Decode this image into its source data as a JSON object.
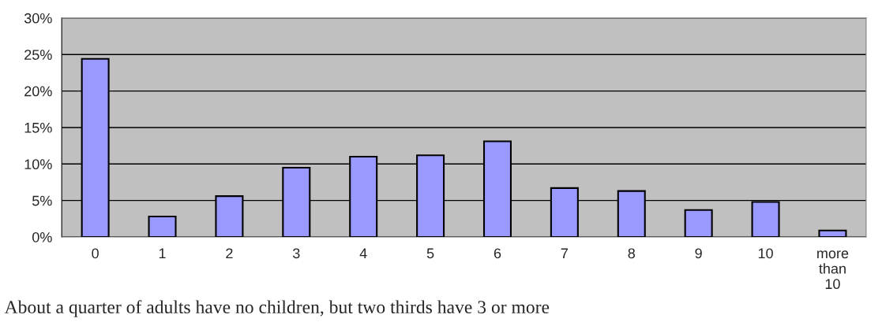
{
  "chart_data": {
    "type": "bar",
    "categories": [
      "0",
      "1",
      "2",
      "3",
      "4",
      "5",
      "6",
      "7",
      "8",
      "9",
      "10",
      "more than 10"
    ],
    "values": [
      24.4,
      2.8,
      5.6,
      9.5,
      11.0,
      11.2,
      13.1,
      6.7,
      6.3,
      3.7,
      4.8,
      0.9
    ],
    "color": "#9999ff",
    "ylim": [
      0,
      30
    ],
    "yticks": [
      {
        "value": 0,
        "label": "0%"
      },
      {
        "value": 5,
        "label": "5%"
      },
      {
        "value": 10,
        "label": "10%"
      },
      {
        "value": 15,
        "label": "15%"
      },
      {
        "value": 20,
        "label": "20%"
      },
      {
        "value": 25,
        "label": "25%"
      },
      {
        "value": 30,
        "label": "30%"
      }
    ],
    "grid": "y",
    "annotations": [
      "About a quarter of adults have no children, but two thirds have 3 or more"
    ]
  }
}
